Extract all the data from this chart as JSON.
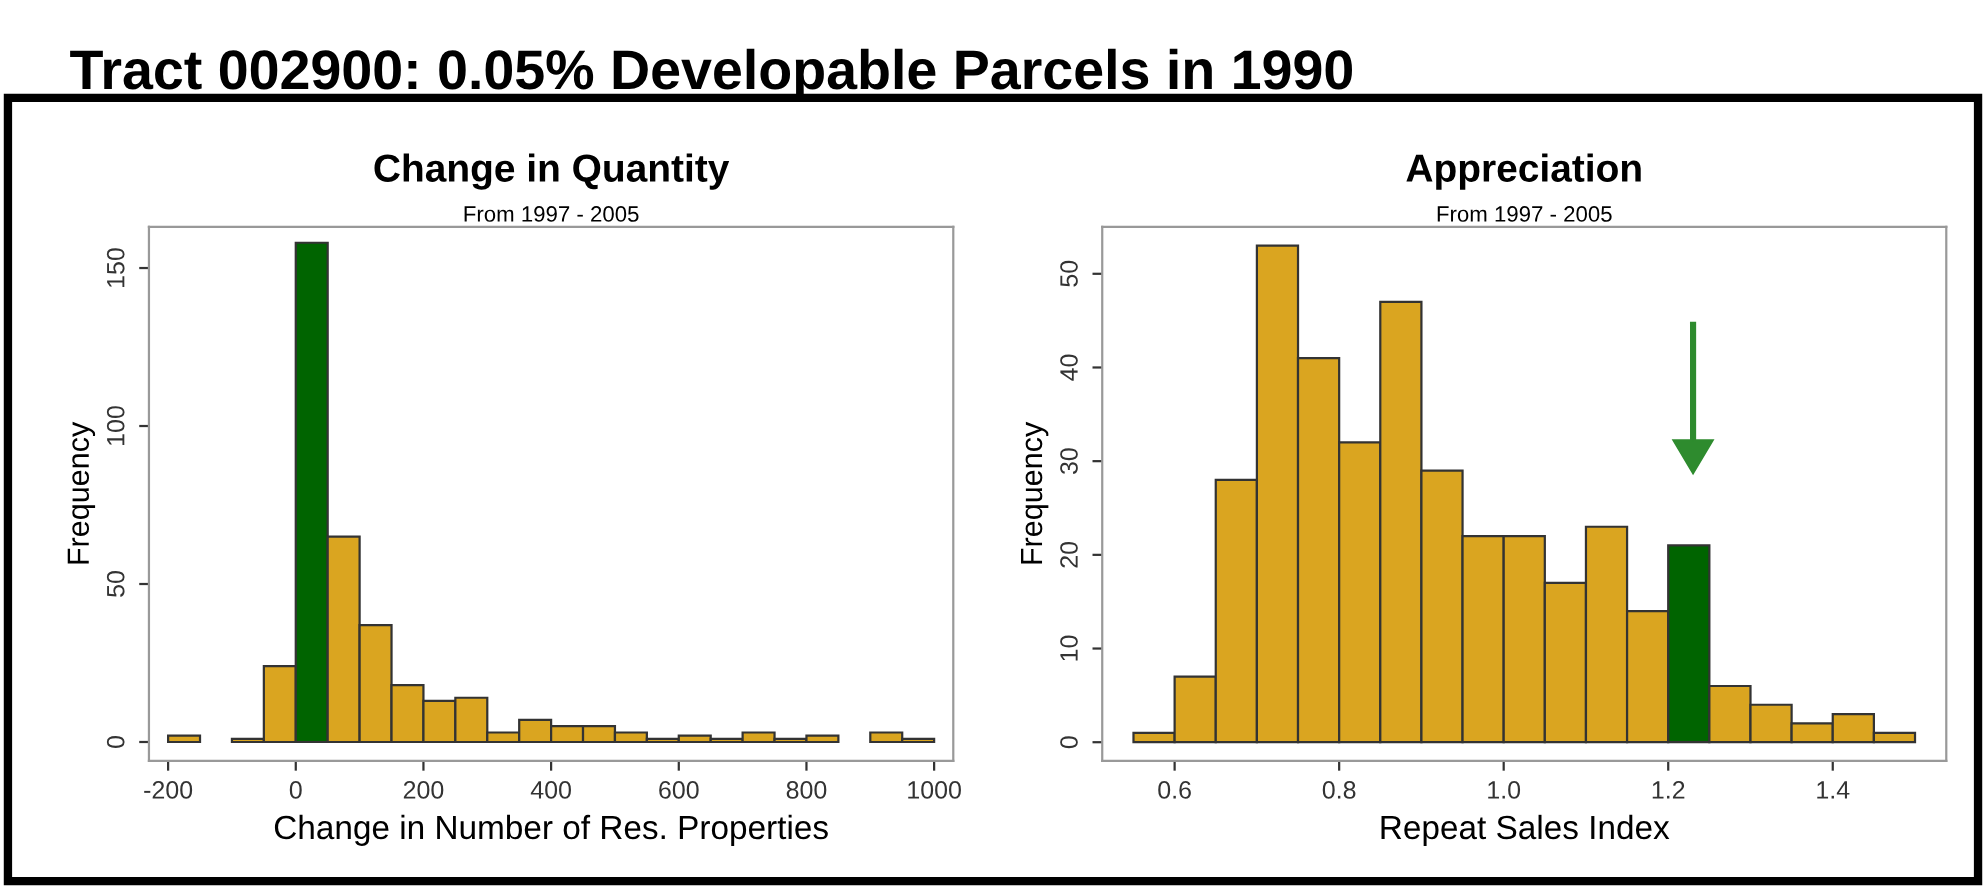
{
  "chart_data": [
    {
      "type": "histogram",
      "title": "Change in Quantity",
      "subtitle": "From 1997 - 2005",
      "xlabel": "Change in Number of Res. Properties",
      "ylabel": "Frequency",
      "annotations": [
        "Tract 002900: 0.05% Developable Parcels in 1990"
      ],
      "bins": [
        -200,
        -150,
        -100,
        -50,
        0,
        50,
        100,
        150,
        200,
        250,
        300,
        350,
        400,
        450,
        500,
        550,
        600,
        650,
        700,
        750,
        800,
        850,
        900,
        950,
        1000
      ],
      "values": [
        2,
        0,
        1,
        24,
        158,
        65,
        37,
        18,
        13,
        14,
        3,
        7,
        5,
        5,
        3,
        1,
        2,
        1,
        3,
        1,
        2,
        0,
        3,
        1
      ],
      "colors": [
        "#daa520",
        "#daa520",
        "#daa520",
        "#daa520",
        "#006400",
        "#daa520",
        "#daa520",
        "#daa520",
        "#daa520",
        "#daa520",
        "#daa520",
        "#daa520",
        "#daa520",
        "#daa520",
        "#daa520",
        "#daa520",
        "#daa520",
        "#daa520",
        "#daa520",
        "#daa520",
        "#daa520",
        "#daa520",
        "#daa520",
        "#daa520"
      ],
      "xlim": [
        -230,
        1030
      ],
      "xticks": [
        -200,
        0,
        200,
        400,
        600,
        800,
        1000
      ],
      "ylim": [
        -6,
        163
      ],
      "yticks": [
        0,
        50,
        100,
        150
      ],
      "grid": false
    },
    {
      "type": "histogram",
      "title": "Appreciation",
      "subtitle": "From 1997 - 2005",
      "xlabel": "Repeat Sales Index",
      "ylabel": "Frequency",
      "bins": [
        0.55,
        0.6,
        0.65,
        0.7,
        0.75,
        0.8,
        0.85,
        0.9,
        0.95,
        1.0,
        1.05,
        1.1,
        1.15,
        1.2,
        1.25,
        1.3,
        1.35,
        1.4,
        1.45,
        1.5
      ],
      "values": [
        1,
        7,
        28,
        53,
        41,
        32,
        47,
        29,
        22,
        22,
        17,
        23,
        14,
        21,
        6,
        4,
        2,
        3,
        1
      ],
      "colors": [
        "#daa520",
        "#daa520",
        "#daa520",
        "#daa520",
        "#daa520",
        "#daa520",
        "#daa520",
        "#daa520",
        "#daa520",
        "#daa520",
        "#daa520",
        "#daa520",
        "#daa520",
        "#006400",
        "#daa520",
        "#daa520",
        "#daa520",
        "#daa520",
        "#daa520"
      ],
      "xlim": [
        0.512,
        1.538
      ],
      "xticks": [
        {
          "value": 0.6,
          "label": "0.6"
        },
        {
          "value": 0.8,
          "label": "0.8"
        },
        {
          "value": 1.0,
          "label": "1.0"
        },
        {
          "value": 1.2,
          "label": "1.2"
        },
        {
          "value": 1.4,
          "label": "1.4"
        }
      ],
      "ylim": [
        -2,
        55
      ],
      "yticks": [
        0,
        10,
        20,
        30,
        40,
        50
      ],
      "grid": false
    }
  ]
}
